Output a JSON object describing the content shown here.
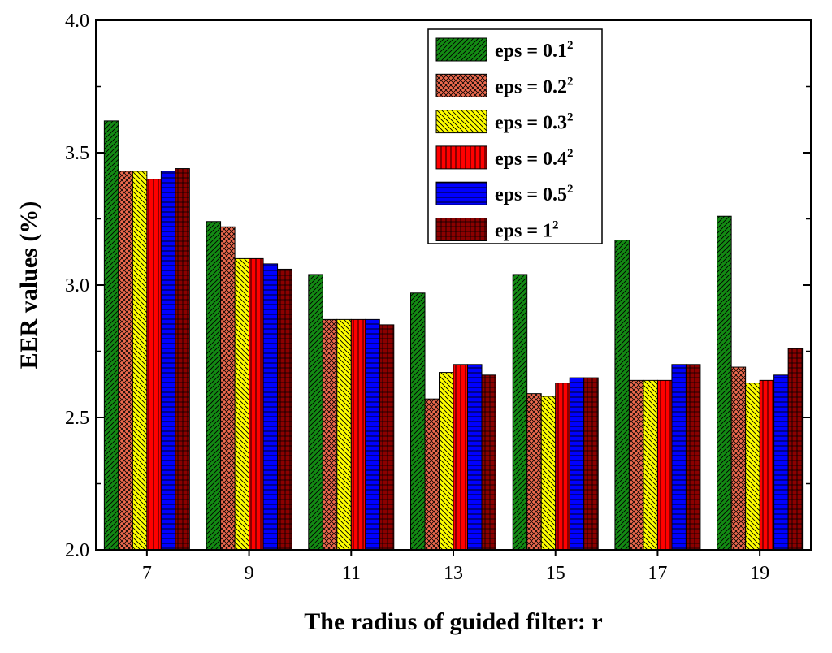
{
  "chart_data": {
    "type": "bar",
    "title": "",
    "xlabel": "The radius of guided filter: r",
    "ylabel": "EER values (%)",
    "ylim": [
      2.0,
      4.0
    ],
    "yticks": [
      "2.0",
      "2.5",
      "3.0",
      "3.5",
      "4.0"
    ],
    "categories": [
      "7",
      "9",
      "11",
      "13",
      "15",
      "17",
      "19"
    ],
    "legend_position": "top-right",
    "series": [
      {
        "name": "eps = 0.1",
        "sup": "2",
        "color": "#138a13",
        "pattern": "diag",
        "values": [
          3.62,
          3.24,
          3.04,
          2.97,
          3.04,
          3.17,
          3.26
        ]
      },
      {
        "name": "eps = 0.2",
        "sup": "2",
        "color": "#ee6a4e",
        "pattern": "cross",
        "values": [
          3.43,
          3.22,
          2.87,
          2.57,
          2.59,
          2.64,
          2.69
        ]
      },
      {
        "name": "eps = 0.3",
        "sup": "2",
        "color": "#ffff00",
        "pattern": "backdiag",
        "values": [
          3.43,
          3.1,
          2.87,
          2.67,
          2.58,
          2.64,
          2.63
        ]
      },
      {
        "name": "eps = 0.4",
        "sup": "2",
        "color": "#ff0000",
        "pattern": "vert",
        "values": [
          3.4,
          3.1,
          2.87,
          2.7,
          2.63,
          2.64,
          2.64
        ]
      },
      {
        "name": "eps = 0.5",
        "sup": "2",
        "color": "#0000ff",
        "pattern": "horiz",
        "values": [
          3.43,
          3.08,
          2.87,
          2.7,
          2.65,
          2.7,
          2.66
        ]
      },
      {
        "name": "eps = 1",
        "sup": "2",
        "color": "#8b0000",
        "pattern": "grid",
        "values": [
          3.44,
          3.06,
          2.85,
          2.66,
          2.65,
          2.7,
          2.76
        ]
      }
    ]
  }
}
